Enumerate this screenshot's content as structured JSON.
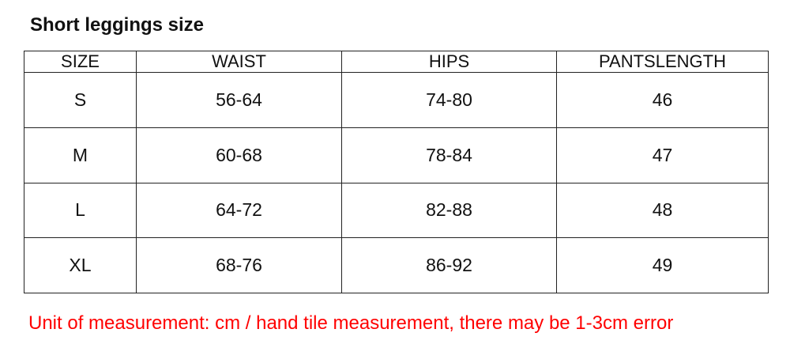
{
  "title": "Short leggings size",
  "table": {
    "headers": [
      "SIZE",
      "WAIST",
      "HIPS",
      "PANTSLENGTH"
    ],
    "rows": [
      [
        "S",
        "56-64",
        "74-80",
        "46"
      ],
      [
        "M",
        "60-68",
        "78-84",
        "47"
      ],
      [
        "L",
        "64-72",
        "82-88",
        "48"
      ],
      [
        "XL",
        "68-76",
        "86-92",
        "49"
      ]
    ]
  },
  "note": "Unit of measurement: cm / hand tile measurement, there may be 1-3cm error",
  "colors": {
    "note": "#ff0000",
    "border": "#222222"
  }
}
